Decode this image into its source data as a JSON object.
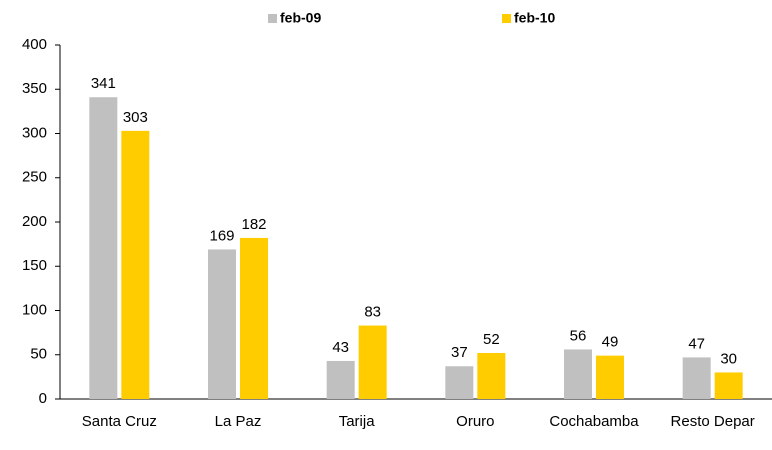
{
  "chart_data": {
    "type": "bar",
    "categories": [
      "Santa Cruz",
      "La Paz",
      "Tarija",
      "Oruro",
      "Cochabamba",
      "Resto Depar"
    ],
    "series": [
      {
        "name": "feb-09",
        "color": "#c0c0c0",
        "values": [
          341,
          169,
          43,
          37,
          56,
          47
        ]
      },
      {
        "name": "feb-10",
        "color": "#ffcc00",
        "values": [
          303,
          182,
          83,
          52,
          49,
          30
        ]
      }
    ],
    "ylim": [
      0,
      400
    ],
    "yticks": [
      0,
      50,
      100,
      150,
      200,
      250,
      300,
      350,
      400
    ],
    "grid": false,
    "legend": "top"
  }
}
